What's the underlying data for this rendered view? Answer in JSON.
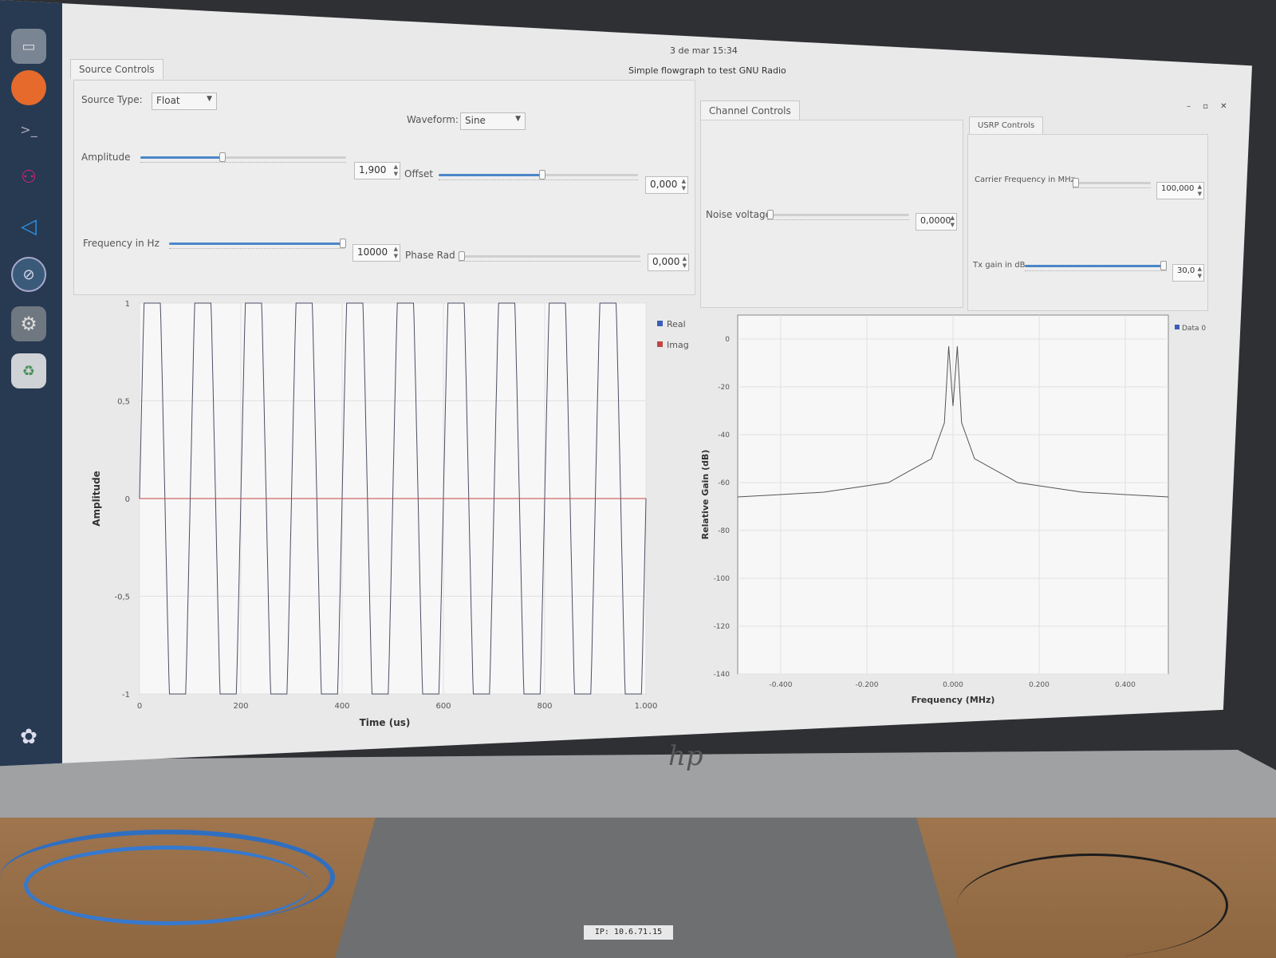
{
  "topbar": {
    "clock": "3 de mar  15:34"
  },
  "window": {
    "title": "Simple flowgraph to test GNU Radio",
    "controls": "– ▫ ✕"
  },
  "tabs": {
    "source": "Source Controls",
    "channel": "Channel Controls",
    "usrp": "USRP Controls"
  },
  "source_controls": {
    "source_type_label": "Source Type:",
    "source_type_value": "Float",
    "waveform_label": "Waveform:",
    "waveform_value": "Sine",
    "amplitude_label": "Amplitude",
    "amplitude_value": "1,900",
    "amplitude_level": 0.4,
    "offset_label": "Offset",
    "offset_value": "0,000",
    "offset_level": 0.52,
    "frequency_label": "Frequency in Hz",
    "frequency_value": "10000",
    "frequency_level": 0.99,
    "phase_label": "Phase Rad",
    "phase_value": "0,000",
    "phase_level": 0.0
  },
  "channel_controls": {
    "noise_label": "Noise voltage",
    "noise_value": "0,0000",
    "noise_level": 0.0
  },
  "usrp_controls": {
    "carrier_label": "Carrier Frequency in MHz",
    "carrier_value": "100,000",
    "carrier_level": 0.02,
    "txgain_label": "Tx gain in dB",
    "txgain_value": "30,0",
    "txgain_level": 0.98
  },
  "colors": {
    "real": "#3a5fb8",
    "imag": "#c4453f",
    "slider_fill": "#4b86c7"
  },
  "chart_data": [
    {
      "type": "line",
      "xlabel": "Time (us)",
      "ylabel": "Amplitude",
      "xlim": [
        0,
        1000
      ],
      "ylim": [
        -1,
        1
      ],
      "xticks": [
        "0",
        "200",
        "400",
        "600",
        "800",
        "1.000"
      ],
      "yticks": [
        "1",
        "0,5",
        "0",
        "-0,5",
        "-1"
      ],
      "series": [
        {
          "name": "Real",
          "description": "sine wave 10 kHz, clipped at ±1"
        },
        {
          "name": "Imag",
          "values_constant": 0
        }
      ],
      "legend": "top-right",
      "grid": true
    },
    {
      "type": "line",
      "xlabel": "Frequency (MHz)",
      "ylabel": "Relative Gain (dB)",
      "xlim": [
        -0.5,
        0.5
      ],
      "ylim": [
        -140,
        0
      ],
      "xticks": [
        "-0.400",
        "-0.200",
        "0.000",
        "0.200",
        "0.400"
      ],
      "yticks": [
        "0",
        "-20",
        "-40",
        "-60",
        "-80",
        "-100",
        "-120",
        "-140"
      ],
      "series": [
        {
          "name": "Data 0",
          "x": [
            -0.5,
            -0.3,
            -0.15,
            -0.05,
            -0.02,
            -0.01,
            0.0,
            0.01,
            0.02,
            0.05,
            0.15,
            0.3,
            0.5
          ],
          "y": [
            -66,
            -64,
            -60,
            -50,
            -35,
            -3,
            -28,
            -3,
            -35,
            -50,
            -60,
            -64,
            -66
          ]
        }
      ],
      "legend": "top-right",
      "grid": true
    }
  ],
  "monitor": {
    "brand": "hp",
    "ip_label": "IP: 10.6.71.15"
  }
}
